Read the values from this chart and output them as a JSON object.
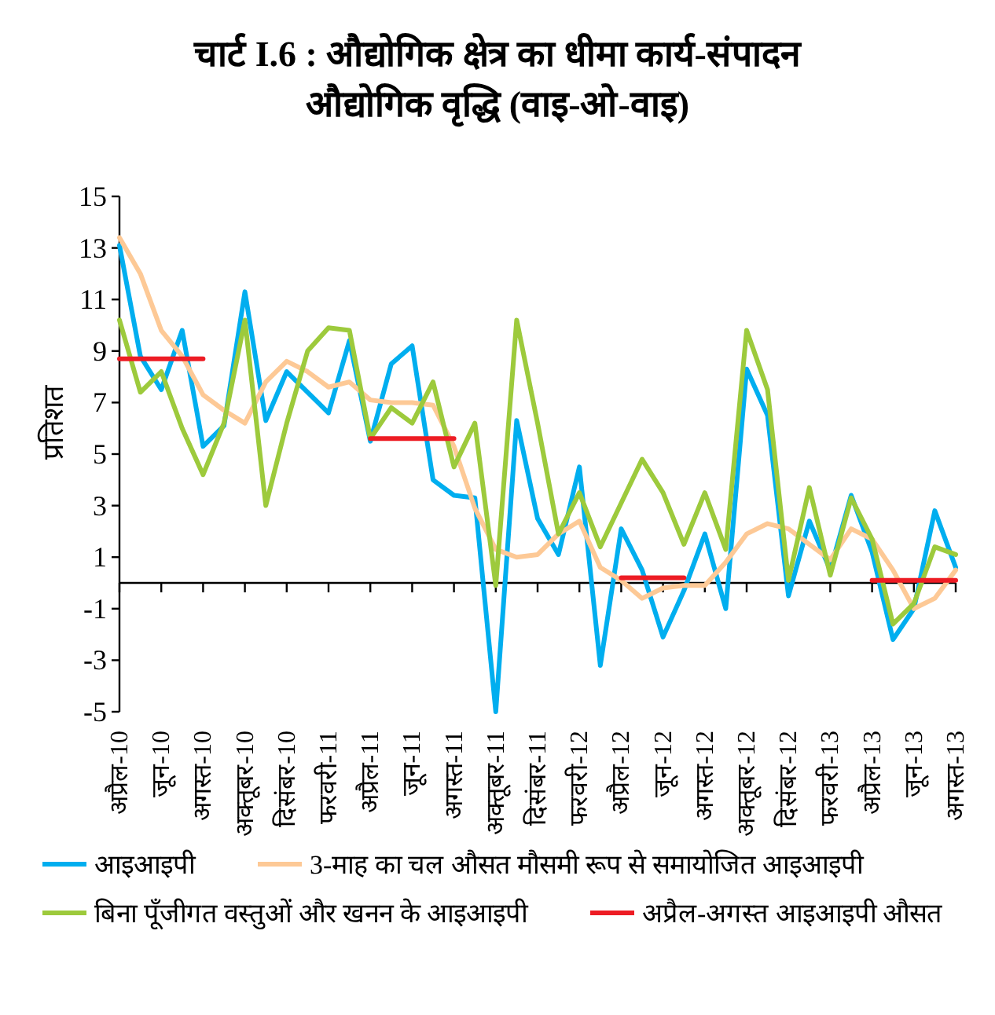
{
  "chart_data": {
    "type": "line",
    "title": "चार्ट I.6 : औद्योगिक क्षेत्र का धीमा कार्य-संपादन\nऔद्योगिक वृद्धि (वाइ-ओ-वाइ)",
    "ylabel": "प्रतिशत",
    "categories": [
      "अप्रैल-10",
      null,
      "जून-10",
      null,
      "अगस्त-10",
      null,
      "अक्तूबर-10",
      null,
      "दिसंबर-10",
      null,
      "फरवरी-11",
      null,
      "अप्रैल-11",
      null,
      "जून-11",
      null,
      "अगस्त-11",
      null,
      "अक्तूबर-11",
      null,
      "दिसंबर-11",
      null,
      "फरवरी-12",
      null,
      "अप्रैल-12",
      null,
      "जून-12",
      null,
      "अगस्त-12",
      null,
      "अक्तूबर-12",
      null,
      "दिसंबर-12",
      null,
      "फरवरी-13",
      null,
      "अप्रैल-13",
      null,
      "जून-13",
      null,
      "अगस्त-13"
    ],
    "ylim": [
      -5,
      15
    ],
    "yticks": [
      -5,
      -3,
      -1,
      1,
      3,
      5,
      7,
      9,
      11,
      13,
      15
    ],
    "legend": "bottom",
    "marker": "none",
    "line_style": "solid",
    "series": [
      {
        "name": "आइआइपी",
        "color": "#00aeef",
        "values": [
          13.1,
          8.8,
          7.5,
          9.8,
          5.3,
          6.1,
          11.3,
          6.3,
          8.2,
          7.4,
          6.6,
          9.4,
          5.5,
          8.5,
          9.2,
          4.0,
          3.4,
          3.3,
          -5.0,
          6.3,
          2.5,
          1.1,
          4.5,
          -3.2,
          2.1,
          0.5,
          -2.1,
          -0.3,
          1.9,
          -1.0,
          8.3,
          6.5,
          -0.5,
          2.4,
          0.5,
          3.4,
          1.2,
          -2.2,
          -1.0,
          2.8,
          0.6
        ]
      },
      {
        "name": "3-माह का चल औसत मौसमी रूप से समायोजित आइआइपी",
        "color": "#fdc996",
        "values": [
          13.4,
          12.0,
          9.8,
          8.8,
          7.3,
          6.7,
          6.2,
          7.8,
          8.6,
          8.2,
          7.6,
          7.8,
          7.1,
          7.0,
          7.0,
          6.9,
          5.3,
          2.9,
          1.3,
          1.0,
          1.1,
          1.9,
          2.4,
          0.6,
          0.1,
          -0.6,
          -0.2,
          -0.1,
          -0.1,
          0.8,
          1.9,
          2.3,
          2.1,
          1.5,
          0.9,
          2.1,
          1.7,
          0.5,
          -1.0,
          -0.6,
          0.5
        ]
      },
      {
        "name": "बिना पूँजीगत वस्तुओं और खनन के आइआइपी",
        "color": "#9dca3c",
        "values": [
          10.2,
          7.4,
          8.2,
          6.0,
          4.2,
          6.2,
          10.2,
          3.0,
          6.2,
          9.0,
          9.9,
          9.8,
          5.6,
          6.8,
          6.2,
          7.8,
          4.5,
          6.2,
          -0.1,
          10.2,
          6.2,
          1.9,
          3.5,
          1.4,
          3.1,
          4.8,
          3.5,
          1.5,
          3.5,
          1.3,
          9.8,
          7.5,
          0.1,
          3.7,
          0.3,
          3.3,
          1.7,
          -1.6,
          -0.8,
          1.4,
          1.1
        ]
      },
      {
        "name": "अप्रैल-अगस्त आइआइपी औसत",
        "color": "#ed1c24",
        "values": [
          8.7,
          8.7,
          8.7,
          8.7,
          8.7,
          null,
          null,
          null,
          null,
          null,
          null,
          null,
          5.6,
          5.6,
          5.6,
          5.6,
          5.6,
          null,
          null,
          null,
          null,
          null,
          null,
          null,
          0.2,
          0.2,
          0.2,
          0.2,
          null,
          null,
          null,
          null,
          null,
          null,
          null,
          null,
          0.1,
          0.1,
          0.1,
          0.1,
          0.1
        ]
      }
    ]
  }
}
